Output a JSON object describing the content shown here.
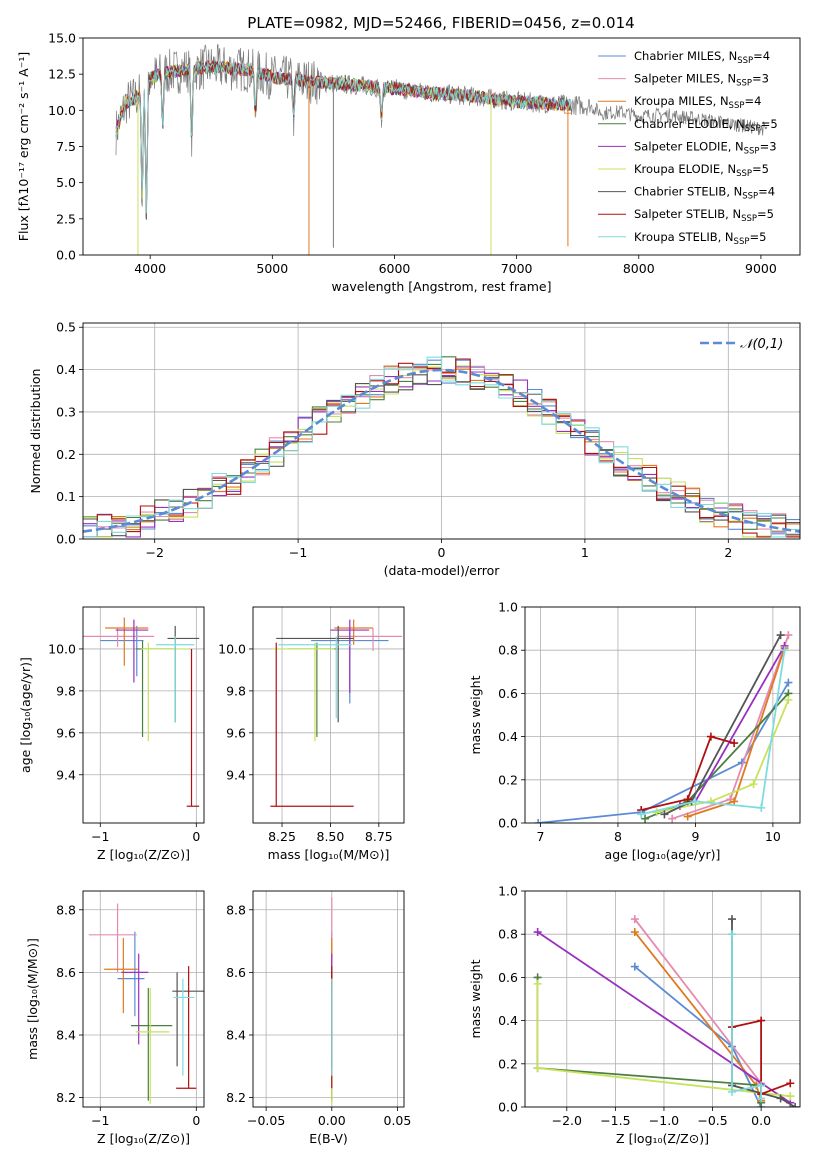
{
  "colors": [
    "#5b8bd6",
    "#e68bb0",
    "#e07a1f",
    "#4a7f3f",
    "#9b30c0",
    "#c7e25c",
    "#555555",
    "#b01010",
    "#7fdcdc"
  ],
  "chart_data": [
    {
      "id": "spectrum",
      "type": "line",
      "title": "PLATE=0982, MJD=52466, FIBERID=0456, z=0.014",
      "xlabel": "wavelength [Angstrom, rest frame]",
      "ylabel": "Flux [fλ10⁻¹⁷ erg cm⁻² s⁻¹ A⁻¹]",
      "xlim": [
        3450,
        9320
      ],
      "ylim": [
        0,
        15
      ],
      "xticks": [
        "4000",
        "5000",
        "6000",
        "7000",
        "8000",
        "9000"
      ],
      "yticks": [
        "0.0",
        "2.5",
        "5.0",
        "7.5",
        "10.0",
        "12.5",
        "15.0"
      ],
      "legend_position": "upper right",
      "series": [
        {
          "name": "Chabrier MILES, NSSP=4",
          "label_main": "Chabrier MILES, N",
          "label_sub": "SSP",
          "label_end": "=4"
        },
        {
          "name": "Salpeter MILES, NSSP=3",
          "label_main": "Salpeter MILES, N",
          "label_sub": "SSP",
          "label_end": "=3"
        },
        {
          "name": "Kroupa MILES, NSSP=4",
          "label_main": "Kroupa MILES, N",
          "label_sub": "SSP",
          "label_end": "=4"
        },
        {
          "name": "Chabrier ELODIE, NSSP=5",
          "label_main": "Chabrier ELODIE, N",
          "label_sub": "SSP",
          "label_end": "=5"
        },
        {
          "name": "Salpeter ELODIE, NSSP=3",
          "label_main": "Salpeter ELODIE, N",
          "label_sub": "SSP",
          "label_end": "=3"
        },
        {
          "name": "Kroupa ELODIE, NSSP=5",
          "label_main": "Kroupa ELODIE, N",
          "label_sub": "SSP",
          "label_end": "=5"
        },
        {
          "name": "Chabrier STELIB, NSSP=4",
          "label_main": "Chabrier STELIB, N",
          "label_sub": "SSP",
          "label_end": "=4"
        },
        {
          "name": "Salpeter STELIB, NSSP=5",
          "label_main": "Salpeter STELIB, N",
          "label_sub": "SSP",
          "label_end": "=5"
        },
        {
          "name": "Kroupa STELIB, NSSP=5",
          "label_main": "Kroupa STELIB, N",
          "label_sub": "SSP",
          "label_end": "=5"
        }
      ],
      "continuum": {
        "x": [
          3720,
          3800,
          3900,
          4000,
          4100,
          4300,
          4500,
          4800,
          5000,
          5300,
          5600,
          6000,
          6300,
          6600,
          6800,
          7000,
          7200,
          7400,
          7600,
          7700,
          7850,
          8000,
          8200,
          8500,
          8800,
          9050
        ],
        "y": [
          8.5,
          10.5,
          11.0,
          12.2,
          12.6,
          12.8,
          13.0,
          12.8,
          12.3,
          12.0,
          11.8,
          11.5,
          11.2,
          11.0,
          10.8,
          10.6,
          10.5,
          10.4,
          10.3,
          9.8,
          9.9,
          9.6,
          9.7,
          9.4,
          9.0,
          8.7
        ]
      },
      "absorption_lines": [
        {
          "x": 3934,
          "y": 4.0
        },
        {
          "x": 3969,
          "y": 2.8
        },
        {
          "x": 4102,
          "y": 9.0
        },
        {
          "x": 4340,
          "y": 7.8
        },
        {
          "x": 4861,
          "y": 9.8
        },
        {
          "x": 5175,
          "y": 9.5
        },
        {
          "x": 5893,
          "y": 9.4
        }
      ],
      "deep_dips": [
        {
          "x": 3900,
          "y": 0.0
        },
        {
          "x": 5300,
          "y": 0.0
        },
        {
          "x": 5500,
          "y": 0.5
        },
        {
          "x": 6790,
          "y": 0.0
        },
        {
          "x": 7420,
          "y": 0.6
        }
      ]
    },
    {
      "id": "residuals",
      "type": "histogram",
      "xlabel": "(data-model)/error",
      "ylabel": "Normed distribution",
      "xlim": [
        -2.5,
        2.5
      ],
      "ylim": [
        0,
        0.51
      ],
      "xticks": [
        "−2",
        "−1",
        "0",
        "1",
        "2"
      ],
      "yticks": [
        "0.0",
        "0.1",
        "0.2",
        "0.3",
        "0.4",
        "0.5"
      ],
      "bin_width": 0.1,
      "grid": true,
      "legend": "𝒩(0,1)",
      "reference_curve": "normal pdf, mean 0, sigma 1",
      "legend_position": "upper right"
    },
    {
      "id": "age_vs_Z",
      "type": "errorbar",
      "xlabel": "Z [log₁₀(Z/Z⊙)]",
      "ylabel": "age  [log₁₀(age/yr)]",
      "xlim": [
        -1.18,
        0.08
      ],
      "ylim": [
        9.17,
        10.2
      ],
      "xticks": [
        "−1",
        "0"
      ],
      "yticks": [
        "9.4",
        "9.6",
        "9.8",
        "10.0"
      ],
      "points": [
        {
          "x": -0.62,
          "xerr": [
            0.38,
            0.07
          ],
          "y": 10.04,
          "yerr": [
            0.17,
            0.07
          ]
        },
        {
          "x": -0.82,
          "xerr": [
            0.38,
            0.38
          ],
          "y": 10.06,
          "yerr": [
            0.05,
            0.04
          ]
        },
        {
          "x": -0.75,
          "xerr": [
            0.2,
            0.25
          ],
          "y": 10.1,
          "yerr": [
            0.18,
            0.05
          ]
        },
        {
          "x": -0.56,
          "xerr": [
            0.07,
            0.33
          ],
          "y": 10.0,
          "yerr": [
            0.42,
            0.04
          ]
        },
        {
          "x": -0.65,
          "xerr": [
            0.19,
            0.15
          ],
          "y": 10.09,
          "yerr": [
            0.25,
            0.05
          ]
        },
        {
          "x": -0.5,
          "xerr": [
            0.07,
            0.42
          ],
          "y": 10.0,
          "yerr": [
            0.44,
            0.03
          ]
        },
        {
          "x": -0.22,
          "xerr": [
            0.08,
            0.25
          ],
          "y": 10.05,
          "yerr": [
            0.4,
            0.06
          ]
        },
        {
          "x": -0.05,
          "xerr": [
            0.05,
            0.08
          ],
          "y": 9.25,
          "yerr": [
            0.0,
            0.75
          ]
        },
        {
          "x": -0.22,
          "xerr": [
            0.2,
            0.2
          ],
          "y": 10.02,
          "yerr": [
            0.37,
            0.04
          ]
        }
      ]
    },
    {
      "id": "age_vs_mass",
      "type": "errorbar",
      "xlabel": "mass [log₁₀(M/M⊙)]",
      "ylabel": "",
      "xlim": [
        8.1,
        8.88
      ],
      "ylim": [
        9.17,
        10.2
      ],
      "xticks": [
        "8.25",
        "8.50",
        "8.75"
      ],
      "yticks": [
        "9.4",
        "9.6",
        "9.8",
        "10.0"
      ],
      "points": [
        {
          "x": 8.6,
          "xerr": [
            0.2,
            0.2
          ],
          "y": 10.04,
          "yerr": [
            0.3,
            0.06
          ]
        },
        {
          "x": 8.72,
          "xerr": [
            0.18,
            0.15
          ],
          "y": 10.06,
          "yerr": [
            0.07,
            0.04
          ]
        },
        {
          "x": 8.62,
          "xerr": [
            0.1,
            0.1
          ],
          "y": 10.1,
          "yerr": [
            0.08,
            0.04
          ]
        },
        {
          "x": 8.43,
          "xerr": [
            0.15,
            0.1
          ],
          "y": 10.0,
          "yerr": [
            0.42,
            0.03
          ]
        },
        {
          "x": 8.6,
          "xerr": [
            0.1,
            0.1
          ],
          "y": 10.09,
          "yerr": [
            0.3,
            0.05
          ]
        },
        {
          "x": 8.42,
          "xerr": [
            0.22,
            0.1
          ],
          "y": 10.0,
          "yerr": [
            0.44,
            0.03
          ]
        },
        {
          "x": 8.54,
          "xerr": [
            0.32,
            0.08
          ],
          "y": 10.05,
          "yerr": [
            0.4,
            0.06
          ]
        },
        {
          "x": 8.22,
          "xerr": [
            0.03,
            0.4
          ],
          "y": 9.25,
          "yerr": [
            0.0,
            0.78
          ]
        },
        {
          "x": 8.53,
          "xerr": [
            0.3,
            0.08
          ],
          "y": 10.02,
          "yerr": [
            0.35,
            0.04
          ]
        }
      ]
    },
    {
      "id": "weight_vs_age",
      "type": "line",
      "xlabel": "age  [log₁₀(age/yr)]",
      "ylabel": "mass weight",
      "xlim": [
        6.8,
        10.35
      ],
      "ylim": [
        0,
        1.0
      ],
      "xticks": [
        "7",
        "8",
        "9",
        "10"
      ],
      "yticks": [
        "0.0",
        "0.2",
        "0.4",
        "0.6",
        "0.8",
        "1.0"
      ],
      "grid": true,
      "series": [
        {
          "x": [
            6.97,
            8.3,
            9.6,
            10.2
          ],
          "y": [
            0.0,
            0.05,
            0.28,
            0.65
          ]
        },
        {
          "x": [
            8.7,
            9.45,
            10.2
          ],
          "y": [
            0.02,
            0.11,
            0.87
          ]
        },
        {
          "x": [
            8.9,
            9.5,
            10.15
          ],
          "y": [
            0.03,
            0.1,
            0.81
          ]
        },
        {
          "x": [
            8.35,
            8.9,
            10.2
          ],
          "y": [
            0.02,
            0.1,
            0.6
          ]
        },
        {
          "x": [
            8.8,
            9.0,
            10.15
          ],
          "y": [
            0.08,
            0.1,
            0.82
          ]
        },
        {
          "x": [
            8.5,
            9.2,
            9.75,
            10.2
          ],
          "y": [
            0.05,
            0.1,
            0.18,
            0.57
          ]
        },
        {
          "x": [
            8.6,
            8.95,
            10.1
          ],
          "y": [
            0.04,
            0.1,
            0.87
          ]
        },
        {
          "x": [
            8.3,
            8.9,
            9.2,
            9.5
          ],
          "y": [
            0.06,
            0.11,
            0.4,
            0.37
          ]
        },
        {
          "x": [
            8.3,
            9.0,
            9.85,
            10.15
          ],
          "y": [
            0.04,
            0.1,
            0.07,
            0.8
          ]
        }
      ]
    },
    {
      "id": "mass_vs_Z",
      "type": "errorbar",
      "xlabel": "Z [log₁₀(Z/Z⊙)]",
      "ylabel": "mass [log₁₀(M/M⊙)]",
      "xlim": [
        -1.18,
        0.08
      ],
      "ylim": [
        8.17,
        8.86
      ],
      "xticks": [
        "−1",
        "0"
      ],
      "yticks": [
        "8.2",
        "8.4",
        "8.6",
        "8.8"
      ],
      "points": [
        {
          "x": -0.64,
          "xerr": [
            0.18,
            0.1
          ],
          "y": 8.58,
          "yerr": [
            0.12,
            0.15
          ]
        },
        {
          "x": -0.82,
          "xerr": [
            0.3,
            0.2
          ],
          "y": 8.72,
          "yerr": [
            0.12,
            0.1
          ]
        },
        {
          "x": -0.76,
          "xerr": [
            0.2,
            0.15
          ],
          "y": 8.61,
          "yerr": [
            0.14,
            0.1
          ]
        },
        {
          "x": -0.5,
          "xerr": [
            0.18,
            0.25
          ],
          "y": 8.43,
          "yerr": [
            0.24,
            0.12
          ]
        },
        {
          "x": -0.6,
          "xerr": [
            0.18,
            0.1
          ],
          "y": 8.6,
          "yerr": [
            0.23,
            0.06
          ]
        },
        {
          "x": -0.48,
          "xerr": [
            0.15,
            0.2
          ],
          "y": 8.41,
          "yerr": [
            0.23,
            0.14
          ]
        },
        {
          "x": -0.2,
          "xerr": [
            0.05,
            0.3
          ],
          "y": 8.54,
          "yerr": [
            0.24,
            0.06
          ]
        },
        {
          "x": -0.08,
          "xerr": [
            0.13,
            0.08
          ],
          "y": 8.23,
          "yerr": [
            0.0,
            0.39
          ]
        },
        {
          "x": -0.14,
          "xerr": [
            0.1,
            0.12
          ],
          "y": 8.52,
          "yerr": [
            0.25,
            0.06
          ]
        }
      ]
    },
    {
      "id": "mass_vs_ebv",
      "type": "errorbar",
      "xlabel": "E(B-V)",
      "ylabel": "",
      "xlim": [
        -0.06,
        0.055
      ],
      "ylim": [
        8.17,
        8.86
      ],
      "xticks": [
        "−0.05",
        "0.00",
        "0.05"
      ],
      "yticks": [
        "8.2",
        "8.4",
        "8.6",
        "8.8"
      ],
      "points": [
        {
          "x": 0,
          "y": 8.58,
          "yerr": [
            0.12,
            0.15
          ]
        },
        {
          "x": 0,
          "y": 8.72,
          "yerr": [
            0.12,
            0.12
          ]
        },
        {
          "x": 0,
          "y": 8.61,
          "yerr": [
            0.14,
            0.1
          ]
        },
        {
          "x": 0,
          "y": 8.43,
          "yerr": [
            0.24,
            0.12
          ]
        },
        {
          "x": 0,
          "y": 8.6,
          "yerr": [
            0.23,
            0.06
          ]
        },
        {
          "x": 0,
          "y": 8.41,
          "yerr": [
            0.23,
            0.14
          ]
        },
        {
          "x": 0,
          "y": 8.54,
          "yerr": [
            0.24,
            0.06
          ]
        },
        {
          "x": 0,
          "y": 8.23,
          "yerr": [
            0.0,
            0.39
          ]
        },
        {
          "x": 0,
          "y": 8.52,
          "yerr": [
            0.25,
            0.06
          ]
        }
      ]
    },
    {
      "id": "weight_vs_Z",
      "type": "line",
      "xlabel": "Z [log₁₀(Z/Z⊙)]",
      "ylabel": "mass weight",
      "xlim": [
        -2.43,
        0.4
      ],
      "ylim": [
        0,
        1.0
      ],
      "xticks": [
        "−2.0",
        "−1.5",
        "−1.0",
        "−0.5",
        "0.0"
      ],
      "yticks": [
        "0.0",
        "0.2",
        "0.4",
        "0.6",
        "0.8",
        "1.0"
      ],
      "grid": true,
      "series": [
        {
          "x": [
            -1.3,
            -0.3,
            0.0
          ],
          "y": [
            0.65,
            0.28,
            0.0
          ]
        },
        {
          "x": [
            -1.3,
            0.0,
            0.0
          ],
          "y": [
            0.87,
            0.11,
            0.02
          ]
        },
        {
          "x": [
            -1.3,
            -0.05,
            0.0
          ],
          "y": [
            0.81,
            0.1,
            0.03
          ]
        },
        {
          "x": [
            -2.3,
            -2.3,
            0.0,
            0.0
          ],
          "y": [
            0.6,
            0.18,
            0.1,
            0.02
          ]
        },
        {
          "x": [
            -2.3,
            0.3
          ],
          "y": [
            0.81,
            0.02
          ]
        },
        {
          "x": [
            -2.3,
            -2.3,
            0.3,
            0.3
          ],
          "y": [
            0.57,
            0.18,
            0.05,
            0.05
          ]
        },
        {
          "x": [
            -0.3,
            -0.3,
            0.2,
            0.35
          ],
          "y": [
            0.87,
            0.1,
            0.04,
            0.0
          ]
        },
        {
          "x": [
            -0.3,
            0.0,
            0.0,
            0.3
          ],
          "y": [
            0.37,
            0.4,
            0.06,
            0.11
          ]
        },
        {
          "x": [
            -0.3,
            -0.3,
            0.0,
            0.0
          ],
          "y": [
            0.8,
            0.07,
            0.1,
            0.04
          ]
        }
      ]
    }
  ]
}
